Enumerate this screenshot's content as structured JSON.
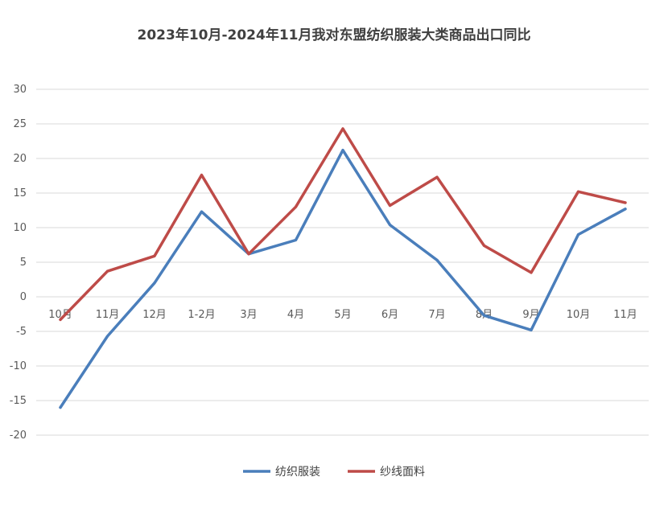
{
  "chart_data": {
    "type": "line",
    "title": "2023年10月-2024年11月我对东盟纺织服装大类商品出口同比",
    "xlabel": "",
    "ylabel": "",
    "categories": [
      "10月",
      "11月",
      "12月",
      "1-2月",
      "3月",
      "4月",
      "5月",
      "6月",
      "7月",
      "8月",
      "9月",
      "10月",
      "11月"
    ],
    "ylim": [
      -20,
      30
    ],
    "yticks": [
      30,
      25,
      20,
      15,
      10,
      5,
      0,
      -5,
      -10,
      -15,
      -20
    ],
    "grid": true,
    "legend": "bottom",
    "series": [
      {
        "name": "纺织服装",
        "color": "#4a7ebb",
        "values": [
          -16.0,
          -5.7,
          2.0,
          12.3,
          6.2,
          8.2,
          21.2,
          10.4,
          5.3,
          -2.7,
          -4.8,
          9.0,
          12.7
        ]
      },
      {
        "name": "纱线面料",
        "color": "#be4b48",
        "values": [
          -3.3,
          3.7,
          5.9,
          17.6,
          6.2,
          13.0,
          24.3,
          13.2,
          17.3,
          7.4,
          3.5,
          15.2,
          13.6
        ]
      }
    ]
  }
}
